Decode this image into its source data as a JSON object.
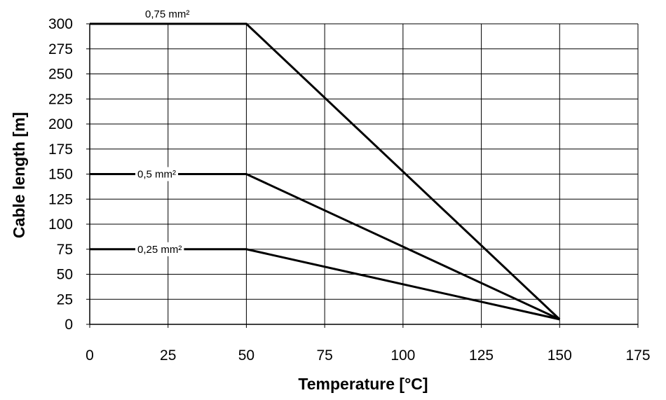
{
  "chart_data": {
    "type": "line",
    "xlabel": "Temperature [°C]",
    "ylabel": "Cable length [m]",
    "xlim": [
      0,
      175
    ],
    "ylim": [
      0,
      300
    ],
    "x_ticks": [
      0,
      25,
      50,
      75,
      100,
      125,
      150,
      175
    ],
    "y_ticks": [
      0,
      25,
      50,
      75,
      100,
      125,
      150,
      175,
      200,
      225,
      250,
      275,
      300
    ],
    "grid": true,
    "series": [
      {
        "name": "0,75 mm²",
        "x": [
          0,
          50,
          150
        ],
        "y": [
          300,
          300,
          5
        ]
      },
      {
        "name": "0,5 mm²",
        "x": [
          0,
          50,
          150
        ],
        "y": [
          150,
          150,
          5
        ]
      },
      {
        "name": "0,25 mm²",
        "x": [
          0,
          50,
          150
        ],
        "y": [
          75,
          75,
          5
        ]
      }
    ],
    "colors": {
      "line": "#000000",
      "grid": "#000000"
    }
  }
}
